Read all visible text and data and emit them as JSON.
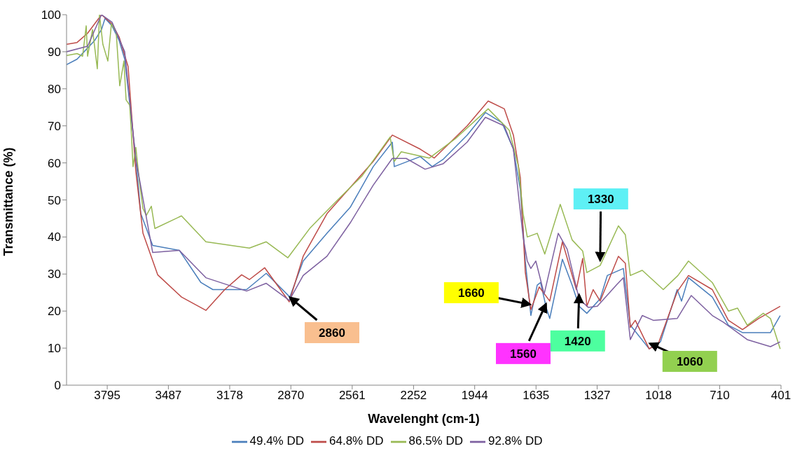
{
  "chart_data": {
    "type": "line",
    "xlabel": "Wavelenght (cm-1)",
    "ylabel": "Transmittance (%)",
    "xlim": [
      4000,
      401
    ],
    "xticks": [
      3795,
      3487,
      3178,
      2870,
      2561,
      2252,
      1944,
      1635,
      1327,
      1018,
      710,
      401
    ],
    "ylim": [
      0,
      100
    ],
    "yticks": [
      0,
      10,
      20,
      30,
      40,
      50,
      60,
      70,
      80,
      90,
      100
    ],
    "grid": false,
    "legend": "bottom",
    "marker": "none",
    "line_style": "solid",
    "series": [
      {
        "name": "49.4% DD",
        "color": "#4a7ebb",
        "x": [
          4000,
          3947,
          3894,
          3859,
          3824,
          3806,
          3771,
          3735,
          3707,
          3690,
          3651,
          3626,
          3566,
          3432,
          3323,
          3263,
          3093,
          2994,
          2875,
          2808,
          2688,
          2571,
          2455,
          2359,
          2349,
          2218,
          2158,
          2102,
          1982,
          1890,
          1806,
          1749,
          1714,
          1689,
          1661,
          1629,
          1612,
          1583,
          1566,
          1502,
          1453,
          1418,
          1379,
          1312,
          1276,
          1195,
          1160,
          1065,
          1008,
          924,
          902,
          867,
          747,
          666,
          595,
          454,
          405
        ],
        "values": [
          86.5,
          88,
          91,
          93,
          96,
          99,
          97,
          93,
          88,
          80,
          61,
          46.3,
          37.7,
          36.4,
          27.7,
          25.8,
          25.8,
          30.2,
          23.8,
          33.5,
          41,
          48,
          59,
          65.6,
          59,
          61.7,
          59,
          61,
          67.5,
          73.6,
          70.8,
          63.7,
          52.7,
          33.5,
          18.8,
          27,
          27.7,
          20.8,
          18,
          34,
          27,
          21.3,
          19.4,
          23.3,
          29.6,
          31.5,
          16.2,
          9.8,
          11.7,
          25.8,
          22.7,
          29,
          23.8,
          16.2,
          14.2,
          14.2,
          18.8
        ]
      },
      {
        "name": "64.8% DD",
        "color": "#be4b48",
        "x": [
          4000,
          3947,
          3894,
          3859,
          3824,
          3771,
          3735,
          3690,
          3651,
          3615,
          3541,
          3421,
          3298,
          3203,
          3118,
          3079,
          3002,
          2878,
          2808,
          2688,
          2455,
          2359,
          2218,
          2148,
          1982,
          1876,
          1795,
          1749,
          1714,
          1689,
          1661,
          1619,
          1566,
          1502,
          1432,
          1400,
          1379,
          1347,
          1312,
          1220,
          1185,
          1160,
          1135,
          1065,
          1019,
          924,
          867,
          747,
          666,
          595,
          514,
          405
        ],
        "values": [
          92,
          92.5,
          95,
          97.5,
          100,
          97.5,
          94,
          86,
          57.7,
          41,
          29.8,
          23.8,
          20.2,
          25.8,
          29.8,
          28.5,
          31.7,
          22.5,
          34.8,
          46.3,
          60.4,
          67.5,
          63.7,
          61.3,
          70,
          76.7,
          74.6,
          67.5,
          56,
          30.4,
          20.4,
          26.5,
          22.7,
          38.7,
          25.8,
          34.2,
          21.3,
          25.8,
          22.7,
          34.8,
          32.9,
          15.6,
          17.5,
          9.8,
          11.2,
          25.2,
          29.6,
          25.8,
          17.5,
          15,
          18,
          21.3
        ]
      },
      {
        "name": "86.5% DD",
        "color": "#98b954",
        "x": [
          4000,
          3947,
          3919,
          3901,
          3894,
          3869,
          3845,
          3834,
          3817,
          3792,
          3774,
          3750,
          3732,
          3711,
          3700,
          3682,
          3675,
          3665,
          3651,
          3633,
          3615,
          3598,
          3573,
          3555,
          3421,
          3298,
          3079,
          2994,
          2885,
          2772,
          2631,
          2511,
          2370,
          2349,
          2314,
          2172,
          2042,
          1876,
          1770,
          1724,
          1700,
          1679,
          1629,
          1591,
          1513,
          1453,
          1400,
          1379,
          1312,
          1220,
          1185,
          1160,
          1100,
          994,
          920,
          867,
          747,
          666,
          620,
          571,
          490,
          454,
          405
        ],
        "values": [
          89,
          89.5,
          88.8,
          97,
          88.8,
          96,
          85.4,
          100,
          92,
          87.5,
          97.5,
          95.4,
          80.8,
          87.5,
          77,
          75.6,
          69.6,
          59,
          64.2,
          55,
          47.7,
          45.8,
          48.3,
          42.3,
          45.7,
          38.7,
          37,
          38.7,
          34.4,
          42.5,
          50.2,
          56.5,
          67,
          60.4,
          63,
          61.3,
          66.5,
          74.6,
          68.8,
          59.2,
          46.3,
          40,
          41,
          35.4,
          48.8,
          39.2,
          36.2,
          30.4,
          32.3,
          43,
          40.6,
          29.6,
          31,
          25.8,
          29.6,
          33.5,
          27.7,
          20,
          20.8,
          16.2,
          19.4,
          18,
          9.8
        ]
      },
      {
        "name": "92.8% DD",
        "color": "#7d60a0",
        "x": [
          4000,
          3894,
          3824,
          3771,
          3707,
          3651,
          3566,
          3432,
          3298,
          3093,
          2994,
          2878,
          2808,
          2688,
          2571,
          2455,
          2359,
          2289,
          2194,
          2102,
          1982,
          1890,
          1795,
          1749,
          1700,
          1679,
          1661,
          1636,
          1594,
          1523,
          1478,
          1418,
          1372,
          1326,
          1231,
          1195,
          1160,
          1100,
          1044,
          924,
          853,
          747,
          691,
          571,
          454,
          405
        ],
        "values": [
          90,
          91.5,
          100,
          98,
          90,
          61,
          35.8,
          36.4,
          29,
          25.4,
          27.5,
          22.9,
          29.6,
          34.8,
          43.8,
          54,
          61.2,
          61.2,
          58.3,
          59.8,
          65.6,
          72.3,
          70,
          63.7,
          40,
          33.5,
          31.5,
          33.5,
          24.6,
          41,
          36.7,
          23.3,
          21,
          21.3,
          27,
          29,
          12.3,
          18.8,
          17.5,
          18,
          24.2,
          18.8,
          17,
          12.3,
          10.4,
          11.7
        ]
      }
    ],
    "annotations": [
      {
        "text": "2860",
        "x": 2878,
        "y": 22.5
      },
      {
        "text": "1660",
        "x": 1661,
        "y": 20.4
      },
      {
        "text": "1560",
        "x": 1583,
        "y": 20.8
      },
      {
        "text": "1420",
        "x": 1418,
        "y": 23.3
      },
      {
        "text": "1330",
        "x": 1312,
        "y": 32.3
      },
      {
        "text": "1060",
        "x": 1065,
        "y": 9.8
      }
    ]
  }
}
